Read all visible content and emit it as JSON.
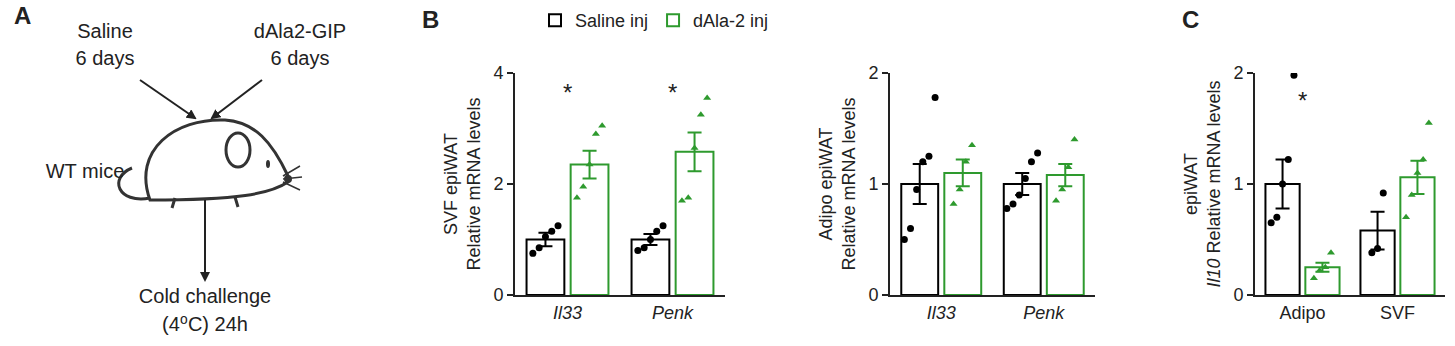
{
  "diagram": {
    "label": "A",
    "treatments": [
      {
        "name": "Saline",
        "duration": "6 days"
      },
      {
        "name": "dAla2-GIP",
        "duration": "6 days"
      }
    ],
    "subject": "WT mice",
    "outcome": [
      "Cold challenge",
      "(4⁰C) 24h"
    ]
  },
  "chart_data": [
    {
      "label": "B",
      "type": "bar",
      "y_label": [
        "SVF epiWAT",
        "Relative mRNA levels"
      ],
      "categories": [
        "Il33",
        "Penk"
      ],
      "ylim": [
        0,
        4
      ],
      "yticks": [
        0,
        2,
        4
      ],
      "legend": "top",
      "series": [
        {
          "name": "Saline inj",
          "color": "#000000",
          "marker": "circle",
          "values": [
            1.0,
            1.0
          ],
          "error": [
            0.12,
            0.1
          ],
          "points": [
            [
              0.75,
              0.85,
              1.05,
              1.15,
              1.25
            ],
            [
              0.8,
              0.85,
              1.0,
              1.15,
              1.25
            ]
          ]
        },
        {
          "name": "dAla-2 inj",
          "color": "#2e9a2e",
          "marker": "triangle-up",
          "values": [
            2.35,
            2.58
          ],
          "error": [
            0.25,
            0.35
          ],
          "points": [
            [
              1.75,
              1.95,
              2.35,
              2.9,
              3.05
            ],
            [
              1.7,
              1.75,
              2.65,
              3.25,
              3.55
            ]
          ]
        }
      ],
      "annotations": [
        {
          "category": "Il33",
          "y": 3.65,
          "text": "*"
        },
        {
          "category": "Penk",
          "y": 3.65,
          "text": "*"
        }
      ]
    },
    {
      "type": "bar",
      "y_label": [
        "Adipo epiWAT",
        "Relative mRNA levels"
      ],
      "categories": [
        "Il33",
        "Penk"
      ],
      "ylim": [
        0,
        2
      ],
      "yticks": [
        0,
        1,
        2
      ],
      "series": [
        {
          "name": "Saline inj",
          "color": "#000000",
          "marker": "circle",
          "values": [
            1.0,
            1.0
          ],
          "error": [
            0.18,
            0.1
          ],
          "points": [
            [
              0.5,
              0.6,
              0.95,
              1.2,
              1.25,
              1.78
            ],
            [
              0.78,
              0.82,
              0.9,
              1.05,
              1.2,
              1.28
            ]
          ]
        },
        {
          "name": "dAla-2 inj",
          "color": "#2e9a2e",
          "marker": "triangle-up",
          "values": [
            1.1,
            1.08
          ],
          "error": [
            0.12,
            0.1
          ],
          "points": [
            [
              0.82,
              0.95,
              1.2,
              1.35
            ],
            [
              0.85,
              0.95,
              1.15,
              1.4
            ]
          ]
        }
      ]
    },
    {
      "label": "C",
      "type": "bar",
      "y_label": [
        "epiWAT",
        "Il10 Relative mRNA levels"
      ],
      "categories": [
        "Adipo",
        "SVF"
      ],
      "ylim": [
        0,
        2
      ],
      "yticks": [
        0,
        1,
        2
      ],
      "series": [
        {
          "name": "Saline inj",
          "color": "#000000",
          "marker": "circle",
          "values": [
            1.0,
            0.58
          ],
          "error": [
            0.22,
            0.17
          ],
          "points": [
            [
              0.65,
              0.7,
              1.0,
              1.22,
              1.98
            ],
            [
              0.38,
              0.42,
              0.92
            ]
          ]
        },
        {
          "name": "dAla-2 inj",
          "color": "#2e9a2e",
          "marker": "triangle-up",
          "values": [
            0.25,
            1.06
          ],
          "error": [
            0.04,
            0.15
          ],
          "points": [
            [
              0.15,
              0.22,
              0.25,
              0.38
            ],
            [
              0.7,
              0.9,
              1.1,
              1.22,
              1.55
            ]
          ]
        }
      ],
      "annotations": [
        {
          "category": "Adipo",
          "y": 1.75,
          "text": "*"
        }
      ]
    }
  ]
}
